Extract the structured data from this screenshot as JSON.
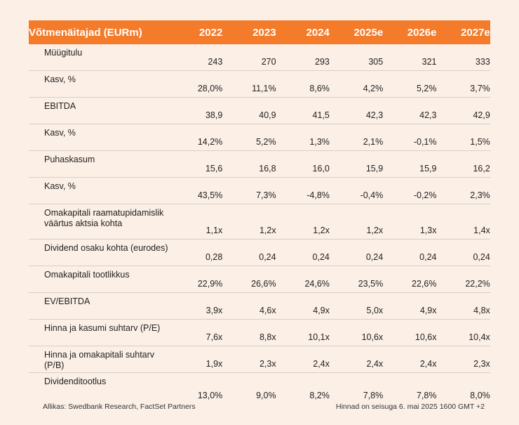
{
  "table": {
    "header_label": "Võtmenäitajad (EURm)",
    "years": [
      "2022",
      "2023",
      "2024",
      "2025e",
      "2026e",
      "2027e"
    ],
    "rows": [
      {
        "label": "Müügitulu",
        "values": [
          "243",
          "270",
          "293",
          "305",
          "321",
          "333"
        ]
      },
      {
        "label": "Kasv, %",
        "values": [
          "28,0%",
          "11,1%",
          "8,6%",
          "4,2%",
          "5,2%",
          "3,7%"
        ]
      },
      {
        "label": "EBITDA",
        "values": [
          "38,9",
          "40,9",
          "41,5",
          "42,3",
          "42,3",
          "42,9"
        ]
      },
      {
        "label": "Kasv, %",
        "values": [
          "14,2%",
          "5,2%",
          "1,3%",
          "2,1%",
          "-0,1%",
          "1,5%"
        ]
      },
      {
        "label": "Puhaskasum",
        "values": [
          "15,6",
          "16,8",
          "16,0",
          "15,9",
          "15,9",
          "16,2"
        ]
      },
      {
        "label": "Kasv, %",
        "values": [
          "43,5%",
          "7,3%",
          "-4,8%",
          "-0,4%",
          "-0,2%",
          "2,3%"
        ]
      },
      {
        "label": "Omakapitali raamatupidamislik väärtus aktsia kohta",
        "values": [
          "1,1x",
          "1,2x",
          "1,2x",
          "1,2x",
          "1,3x",
          "1,4x"
        ]
      },
      {
        "label": "Dividend osaku kohta (eurodes)",
        "values": [
          "0,28",
          "0,24",
          "0,24",
          "0,24",
          "0,24",
          "0,24"
        ]
      },
      {
        "label": "Omakapitali tootlikkus",
        "values": [
          "22,9%",
          "26,6%",
          "24,6%",
          "23,5%",
          "22,6%",
          "22,2%"
        ]
      },
      {
        "label": "EV/EBITDA",
        "values": [
          "3,9x",
          "4,6x",
          "4,9x",
          "5,0x",
          "4,9x",
          "4,8x"
        ]
      },
      {
        "label": "Hinna ja kasumi suhtarv (P/E)",
        "values": [
          "7,6x",
          "8,8x",
          "10,1x",
          "10,6x",
          "10,6x",
          "10,4x"
        ]
      },
      {
        "label": "Hinna ja omakapitali suhtarv (P/B)",
        "values": [
          "1,9x",
          "2,3x",
          "2,4x",
          "2,4x",
          "2,4x",
          "2,3x"
        ]
      },
      {
        "label": "Dividenditootlus",
        "values": [
          "13,0%",
          "9,0%",
          "8,2%",
          "7,8%",
          "7,8%",
          "8,0%"
        ]
      }
    ]
  },
  "footer": {
    "source": "Allikas: Swedbank Research, FactSet Partners",
    "price_note": "Hinnad on seisuga 6. mai 2025 1600 GMT +2"
  },
  "colors": {
    "header_bg": "#f47b2a",
    "page_bg": "#fbefe6"
  }
}
